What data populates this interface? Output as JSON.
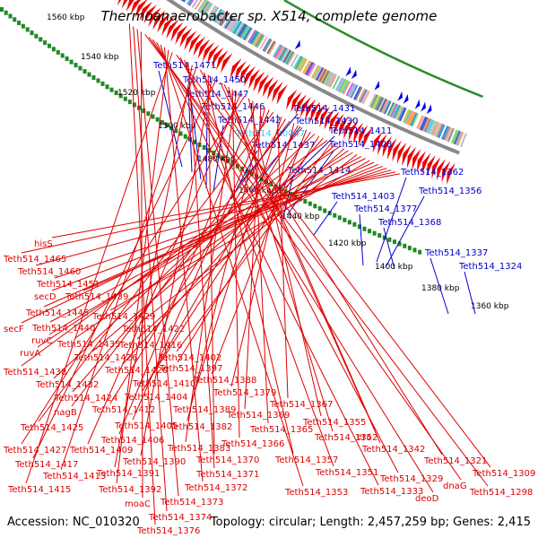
{
  "header": {
    "title": "Thermoanaerobacter sp. X514, complete genome"
  },
  "footer": {
    "accession": "Accession: NC_010320",
    "summary": "Topology: circular; Length: 2,457,259 bp; Genes: 2,415"
  },
  "colors": {
    "forward_label": "#0000cc",
    "reverse_label": "#dd0000",
    "rna_label": "#33ccff",
    "backbone": "#888888",
    "tick_ring": "#228822"
  },
  "scale_labels": [
    "1560 kbp",
    "1540 kbp",
    "1520 kbp",
    "1500 kbp",
    "1480 kbp",
    "1460 kbp",
    "1440 kbp",
    "1420 kbp",
    "1400 kbp",
    "1380 kbp",
    "1360 kbp"
  ],
  "forward_genes": [
    {
      "label": "Teth514_1471",
      "kind": "cds"
    },
    {
      "label": "Teth514_1450",
      "kind": "cds"
    },
    {
      "label": "Teth514_1447",
      "kind": "cds"
    },
    {
      "label": "Teth514_1446",
      "kind": "cds"
    },
    {
      "label": "Teth514_1442",
      "kind": "cds"
    },
    {
      "label": "Teth514_R0047",
      "kind": "rna"
    },
    {
      "label": "Teth514_1437",
      "kind": "cds"
    },
    {
      "label": "Teth514_1431",
      "kind": "cds"
    },
    {
      "label": "Teth514_1430",
      "kind": "cds"
    },
    {
      "label": "Teth514_1411",
      "kind": "cds"
    },
    {
      "label": "Teth514_1408",
      "kind": "cds"
    },
    {
      "label": "Teth514_1414",
      "kind": "cds"
    },
    {
      "label": "Teth514_1362",
      "kind": "cds"
    },
    {
      "label": "Teth514_1356",
      "kind": "cds"
    },
    {
      "label": "Teth514_1403",
      "kind": "cds"
    },
    {
      "label": "Teth514_1377",
      "kind": "cds"
    },
    {
      "label": "Teth514_1368",
      "kind": "cds"
    },
    {
      "label": "Teth514_1337",
      "kind": "cds"
    },
    {
      "label": "Teth514_1324",
      "kind": "cds"
    }
  ],
  "reverse_genes": [
    "hisS",
    "Teth514_1465",
    "Teth514_1460",
    "Teth514_1451",
    "secD",
    "Teth514_1439",
    "Teth514_1445",
    "Teth514_1429",
    "secF",
    "Teth514_1440",
    "Teth514_1422",
    "ruvC",
    "Teth514_1435",
    "Teth514_1416",
    "ruvA",
    "Teth514_1426",
    "Teth514_1402",
    "Teth514_1438",
    "Teth514_1420",
    "Teth514_1397",
    "Teth514_1432",
    "Teth514_1410",
    "Teth514_1388",
    "Teth514_1424",
    "Teth514_1404",
    "Teth514_1379",
    "nagB",
    "Teth514_1412",
    "Teth514_1389",
    "Teth514_1367",
    "Teth514_1425",
    "Teth514_1405",
    "Teth514_1382",
    "Teth514_1369",
    "Teth514_1406",
    "Teth514_1365",
    "Teth514_1355",
    "Teth514_1427",
    "Teth514_1409",
    "Teth514_1383",
    "Teth514_1366",
    "Teth514_1352",
    "era",
    "Teth514_1342",
    "Teth514_1417",
    "Teth514_1390",
    "Teth514_1370",
    "Teth514_1357",
    "Teth514_1321",
    "Teth514_1413",
    "Teth514_1391",
    "Teth514_1371",
    "Teth514_1351",
    "Teth514_1329",
    "Teth514_1309",
    "Teth514_1415",
    "Teth514_1392",
    "Teth514_1372",
    "Teth514_1353",
    "Teth514_1333",
    "deoD",
    "dnaG",
    "Teth514_1298",
    "moaC",
    "Teth514_1373",
    "Teth514_1374",
    "Teth514_1376"
  ]
}
